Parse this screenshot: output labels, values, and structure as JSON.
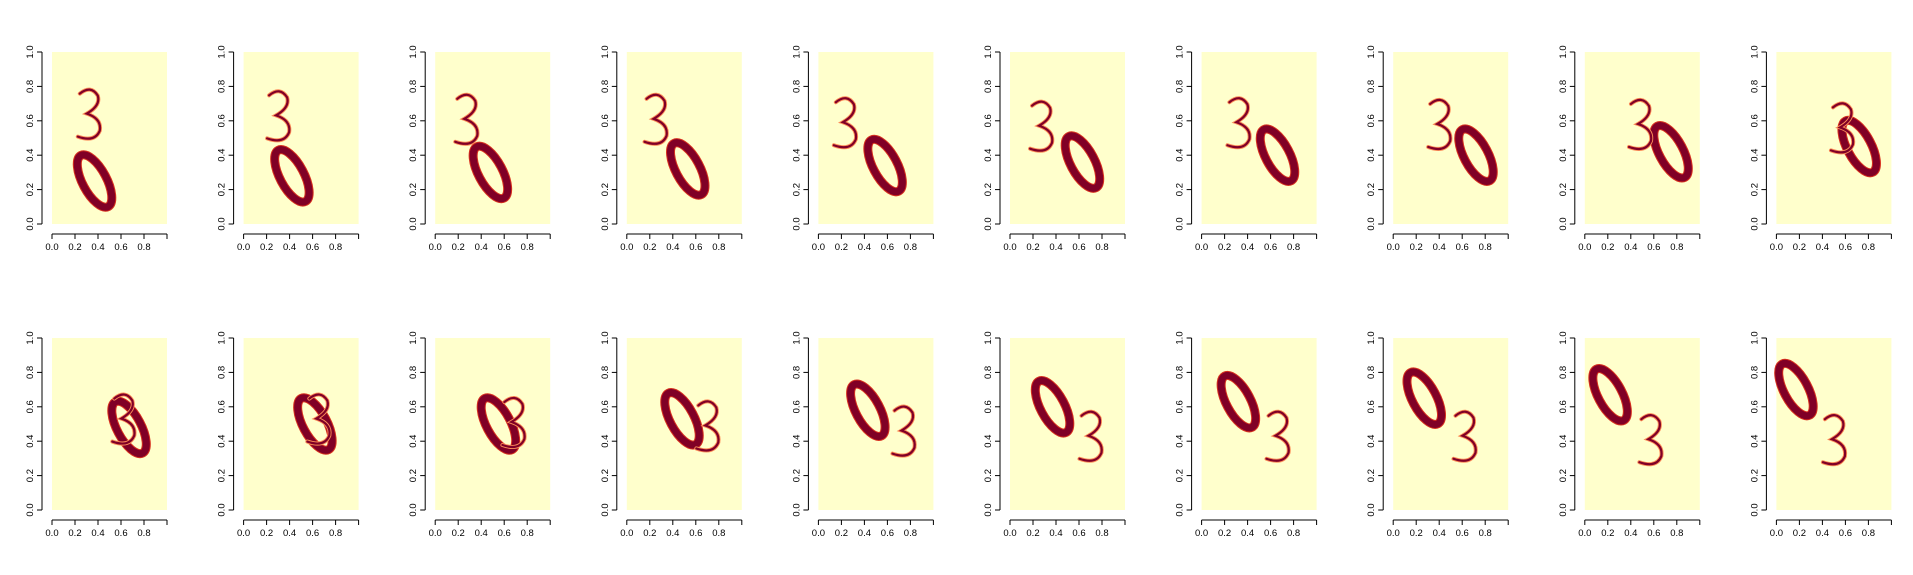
{
  "figure": {
    "rows": 2,
    "cols": 10
  },
  "colors": {
    "background": "#ffffcc",
    "digit_dark": "#800026",
    "digit_edge": "#d7301f",
    "digit_mid": "#fc8d59",
    "axis": "#000000"
  },
  "chart_data": {
    "type": "heatmap",
    "description_of_panels": "20 image panels of two overlapping digits (a '3' and a '0') moving across frames",
    "xlim": [
      0,
      1
    ],
    "ylim": [
      0,
      1
    ],
    "x_ticks": [
      "0.0",
      "0.2",
      "0.4",
      "0.6",
      "0.8"
    ],
    "y_ticks": [
      "0.0",
      "0.2",
      "0.4",
      "0.6",
      "0.8",
      "1.0"
    ],
    "panels": [
      {
        "three": [
          0.32,
          0.63
        ],
        "zero": [
          0.37,
          0.25
        ]
      },
      {
        "three": [
          0.3,
          0.62
        ],
        "zero": [
          0.42,
          0.28
        ]
      },
      {
        "three": [
          0.27,
          0.6
        ],
        "zero": [
          0.48,
          0.3
        ]
      },
      {
        "three": [
          0.25,
          0.6
        ],
        "zero": [
          0.53,
          0.32
        ]
      },
      {
        "three": [
          0.23,
          0.58
        ],
        "zero": [
          0.58,
          0.34
        ]
      },
      {
        "three": [
          0.27,
          0.56
        ],
        "zero": [
          0.63,
          0.36
        ]
      },
      {
        "three": [
          0.32,
          0.58
        ],
        "zero": [
          0.66,
          0.4
        ]
      },
      {
        "three": [
          0.4,
          0.57
        ],
        "zero": [
          0.72,
          0.4
        ]
      },
      {
        "three": [
          0.48,
          0.57
        ],
        "zero": [
          0.75,
          0.42
        ]
      },
      {
        "three": [
          0.57,
          0.55
        ],
        "zero": [
          0.72,
          0.45
        ]
      },
      {
        "three": [
          0.62,
          0.52
        ],
        "zero": [
          0.67,
          0.48
        ]
      },
      {
        "three": [
          0.65,
          0.52
        ],
        "zero": [
          0.62,
          0.5
        ]
      },
      {
        "three": [
          0.68,
          0.5
        ],
        "zero": [
          0.55,
          0.5
        ]
      },
      {
        "three": [
          0.7,
          0.48
        ],
        "zero": [
          0.48,
          0.53
        ]
      },
      {
        "three": [
          0.74,
          0.45
        ],
        "zero": [
          0.43,
          0.58
        ]
      },
      {
        "three": [
          0.7,
          0.42
        ],
        "zero": [
          0.37,
          0.6
        ]
      },
      {
        "three": [
          0.66,
          0.42
        ],
        "zero": [
          0.32,
          0.63
        ]
      },
      {
        "three": [
          0.62,
          0.42
        ],
        "zero": [
          0.27,
          0.65
        ]
      },
      {
        "three": [
          0.57,
          0.4
        ],
        "zero": [
          0.22,
          0.67
        ]
      },
      {
        "three": [
          0.5,
          0.4
        ],
        "zero": [
          0.17,
          0.7
        ]
      }
    ]
  }
}
